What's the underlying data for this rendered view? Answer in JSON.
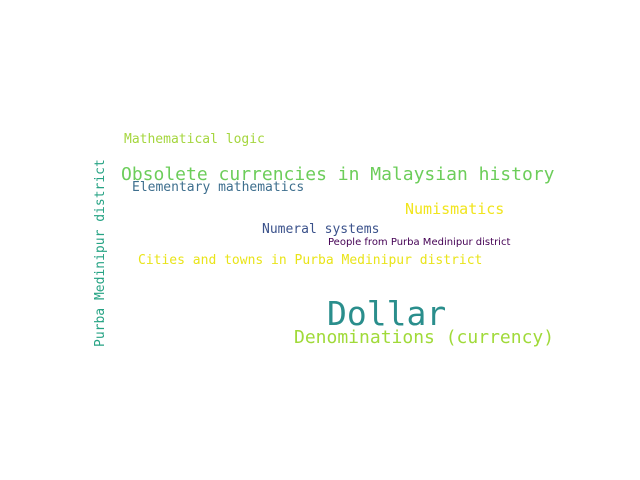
{
  "words": [
    {
      "text": "Mathematical logic",
      "color": "#a5d63e"
    },
    {
      "text": "Obsolete currencies in Malaysian history",
      "color": "#6ccd5a"
    },
    {
      "text": "Elementary mathematics",
      "color": "#3e6f8e"
    },
    {
      "text": "Numismatics",
      "color": "#f1e51d"
    },
    {
      "text": "Numeral systems",
      "color": "#3b528b"
    },
    {
      "text": "People from Purba Medinipur district",
      "color": "#440154"
    },
    {
      "text": "Cities and towns in Purba Medinipur district",
      "color": "#e9e419"
    },
    {
      "text": "Dollar",
      "color": "#2a8e8c"
    },
    {
      "text": "Denominations (currency)",
      "color": "#a0da39"
    },
    {
      "text": "Purba Medinipur district",
      "color": "#26a384"
    }
  ]
}
